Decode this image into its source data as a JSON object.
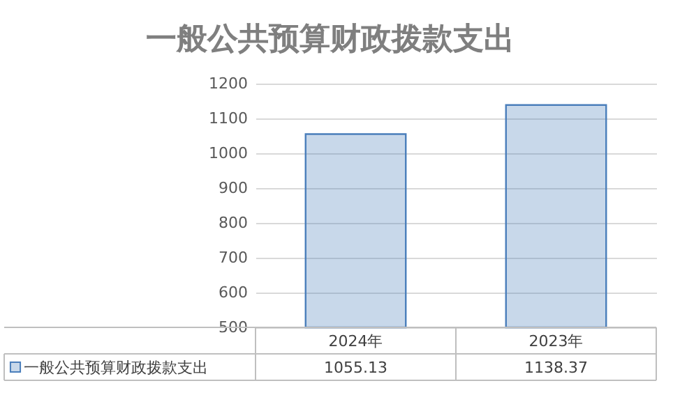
{
  "chart_data": {
    "type": "bar",
    "title": "一般公共预算财政拨款支出",
    "categories": [
      "2024年",
      "2023年"
    ],
    "series": [
      {
        "name": "一般公共预算财政拨款支出",
        "color": "#4a7ebb",
        "values": [
          1055.13,
          1138.37
        ]
      }
    ],
    "ylim": [
      500,
      1200
    ],
    "yticks": [
      500,
      600,
      700,
      800,
      900,
      1000,
      1100,
      1200
    ],
    "grid": "y",
    "legend": "bottom",
    "data_labels": true
  }
}
